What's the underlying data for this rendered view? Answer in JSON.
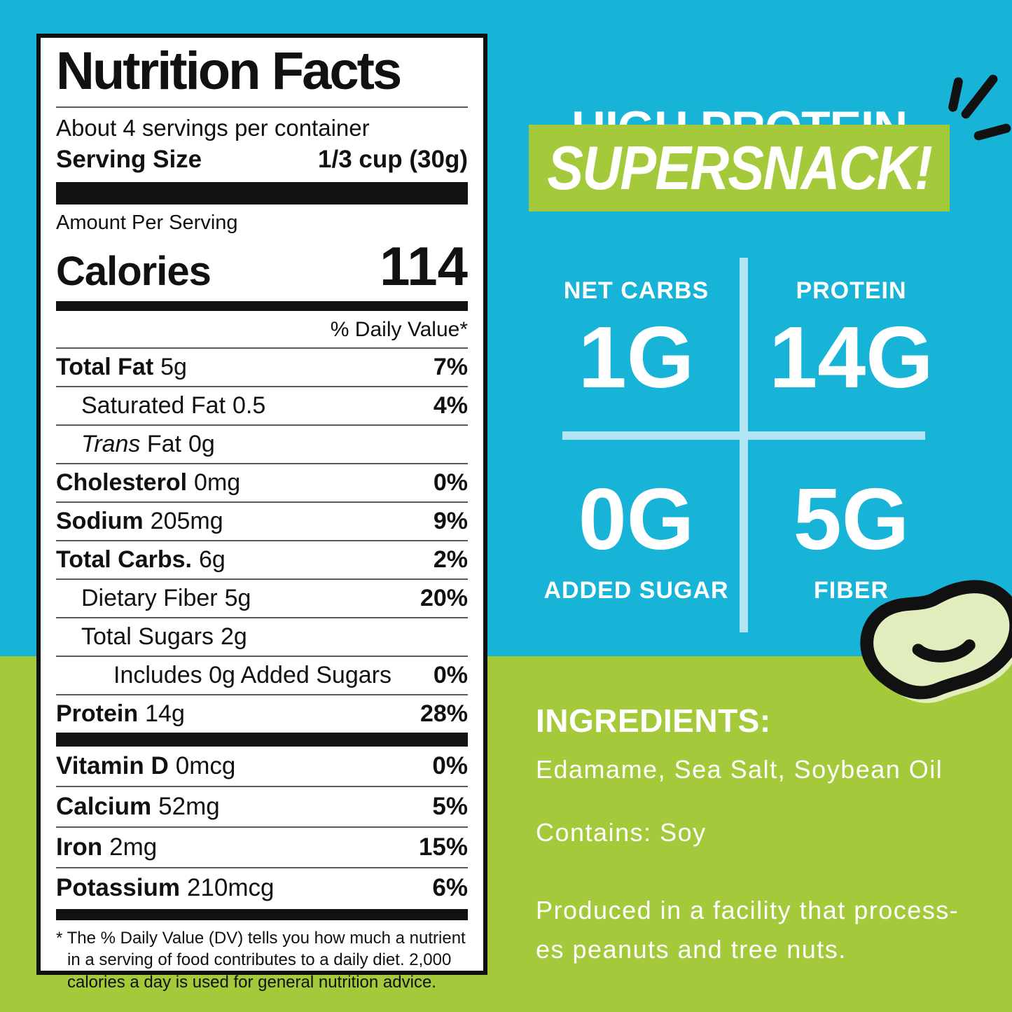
{
  "colors": {
    "blue": "#17b4d8",
    "green": "#a4c93a",
    "pale_blue": "#b2e5f4",
    "bean_fill": "#e2edbe",
    "ink": "#111111",
    "paper": "#ffffff"
  },
  "label": {
    "title": "Nutrition Facts",
    "servings_per_container": "About 4 servings per container",
    "serving_size_label": "Serving Size",
    "serving_size_value": "1/3 cup (30g)",
    "amount_per_serving": "Amount Per Serving",
    "calories_label": "Calories",
    "calories_value": "114",
    "daily_value_header": "% Daily Value*",
    "nutrients": [
      {
        "name": "Total Fat",
        "amount": "5g",
        "dv": "7%",
        "bold": true,
        "indent": 0
      },
      {
        "name": "Saturated Fat",
        "amount": "0.5",
        "dv": "4%",
        "bold": false,
        "indent": 1
      },
      {
        "italic_prefix": "Trans",
        "name": "Fat",
        "amount": "0g",
        "dv": "",
        "bold": false,
        "indent": 1
      },
      {
        "name": "Cholesterol",
        "amount": "0mg",
        "dv": "0%",
        "bold": true,
        "indent": 0
      },
      {
        "name": "Sodium",
        "amount": "205mg",
        "dv": "9%",
        "bold": true,
        "indent": 0
      },
      {
        "name": "Total Carbs.",
        "amount": "6g",
        "dv": "2%",
        "bold": true,
        "indent": 0
      },
      {
        "name": "Dietary Fiber",
        "amount": "5g",
        "dv": "20%",
        "bold": false,
        "indent": 1
      },
      {
        "name": "Total Sugars",
        "amount": "2g",
        "dv": "",
        "bold": false,
        "indent": 1
      },
      {
        "name": "Includes 0g Added Sugars",
        "amount": "",
        "dv": "0%",
        "bold": false,
        "indent": 2
      },
      {
        "name": "Protein",
        "amount": "14g",
        "dv": "28%",
        "bold": true,
        "indent": 0
      }
    ],
    "vitamins": [
      {
        "name": "Vitamin D",
        "amount": "0mcg",
        "dv": "0%"
      },
      {
        "name": "Calcium",
        "amount": "52mg",
        "dv": "5%"
      },
      {
        "name": "Iron",
        "amount": "2mg",
        "dv": "15%"
      },
      {
        "name": "Potassium",
        "amount": "210mcg",
        "dv": "6%"
      }
    ],
    "footnote": "* The % Daily Value (DV) tells you how much a nutrient in a serving of food contributes to a daily diet. 2,000 calories a day is used for general nutrition advice."
  },
  "marketing": {
    "headline": "HIGH PROTEIN",
    "banner": "SUPERSNACK!",
    "stats": [
      {
        "label": "NET CARBS",
        "value": "1G"
      },
      {
        "label": "PROTEIN",
        "value": "14G"
      },
      {
        "label": "ADDED SUGAR",
        "value": "0G"
      },
      {
        "label": "FIBER",
        "value": "5G"
      }
    ],
    "ingredients_heading": "INGREDIENTS:",
    "ingredients": "Edamame, Sea Salt, Soybean Oil",
    "contains": "Contains: Soy",
    "facility_lines": [
      "Produced in a facility that process-",
      "es peanuts and tree nuts."
    ]
  },
  "icons": {
    "bean_icon": "edamame-bean",
    "accent_icon": "emphasis-burst-lines"
  }
}
